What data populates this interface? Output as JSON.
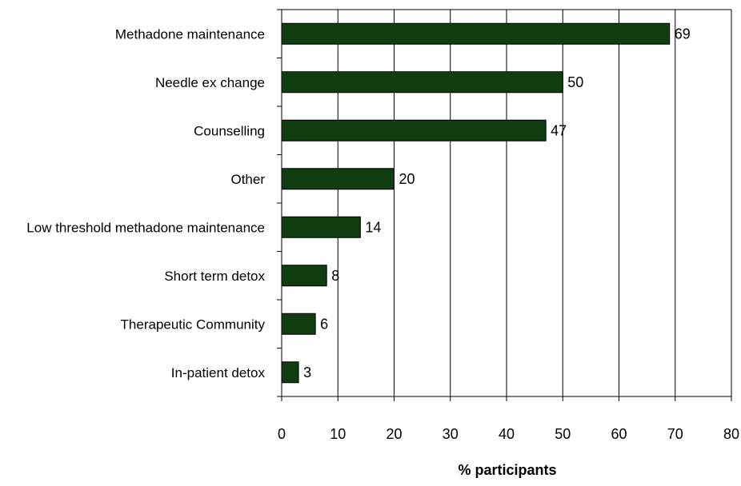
{
  "chart_data": {
    "type": "bar",
    "orientation": "horizontal",
    "categories": [
      "Methadone maintenance",
      "Needle ex change",
      "Counselling",
      "Other",
      "Low threshold methadone maintenance",
      "Short term detox",
      "Therapeutic Community",
      "In-patient detox"
    ],
    "values": [
      69,
      50,
      47,
      20,
      14,
      8,
      6,
      3
    ],
    "xlabel": "% participants",
    "ylabel": "",
    "xlim": [
      0,
      80
    ],
    "xticks": [
      0,
      10,
      20,
      30,
      40,
      50,
      60,
      70,
      80
    ],
    "grid": "vertical",
    "bar_color": "#0f3d0f",
    "data_labels": true,
    "legend": "none"
  }
}
